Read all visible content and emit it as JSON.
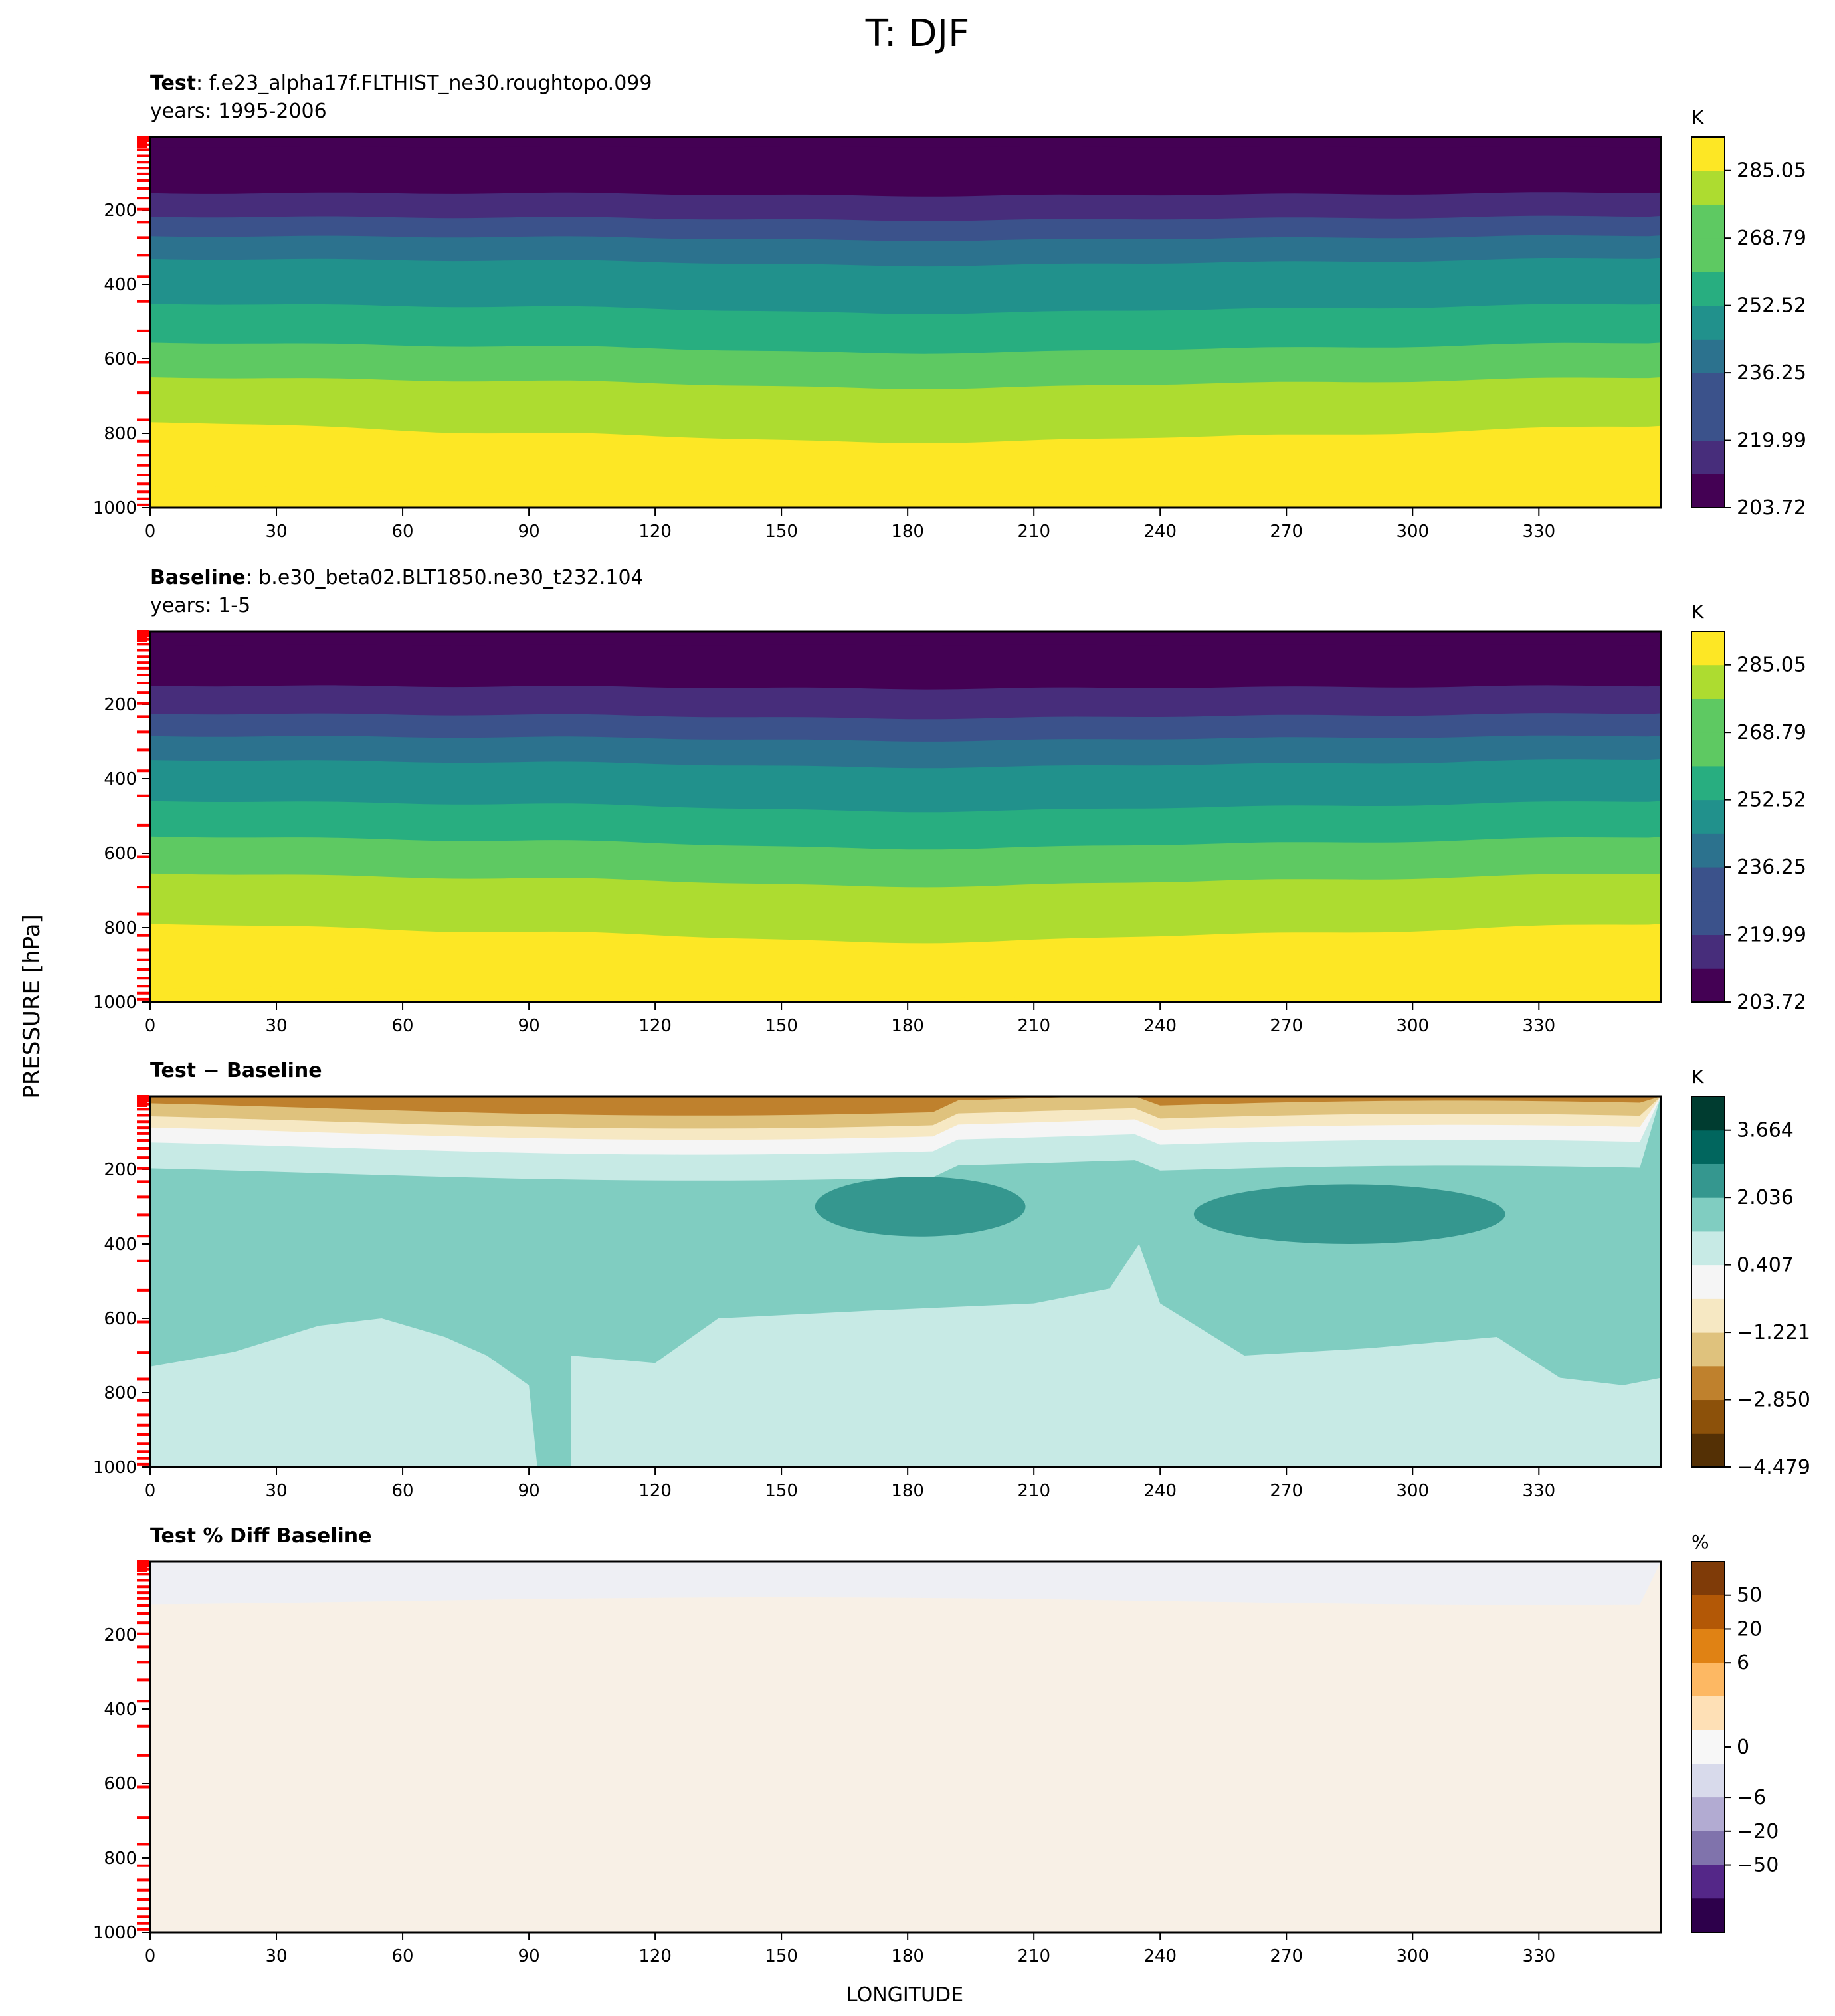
{
  "figure": {
    "title": "T: DJF",
    "ylabel": "PRESSURE [hPa]",
    "xlabel": "LONGITUDE"
  },
  "colors": {
    "viridis": [
      "#440154",
      "#472d7b",
      "#3b528b",
      "#2c728e",
      "#21918c",
      "#28ae80",
      "#5ec962",
      "#addc30",
      "#fde725"
    ],
    "diff": [
      "#543005",
      "#8c510a",
      "#bf812d",
      "#dfc27d",
      "#f6e8c3",
      "#f5f5f5",
      "#c7eae5",
      "#80cdc1",
      "#35978f",
      "#01665e",
      "#003c30"
    ],
    "pct": [
      "#2d004b",
      "#542788",
      "#8073ac",
      "#b2abd2",
      "#d8daeb",
      "#f7f7f7",
      "#fee0b6",
      "#fdb863",
      "#e08214",
      "#b35806",
      "#7f3b08"
    ],
    "tick_mark": "#ff0000"
  },
  "chart_data": [
    {
      "type": "contourf",
      "panel": "test",
      "title_bold": "Test",
      "title_rest": ": f.e23_alpha17f.FLTHIST_ne30.roughtopo.099",
      "subtitle": "years: 1995-2006",
      "x_ticks": [
        0,
        30,
        60,
        90,
        120,
        150,
        180,
        210,
        240,
        270,
        300,
        330
      ],
      "xlim": [
        0,
        359
      ],
      "y_ticks": [
        200,
        400,
        600,
        800,
        1000
      ],
      "ylim": [
        1000,
        3.6
      ],
      "model_levels_hPa": [
        3.6,
        7.6,
        14.4,
        24.6,
        38.3,
        54.6,
        72.0,
        87.8,
        103.3,
        121.5,
        142.9,
        168.2,
        197.9,
        232.8,
        273.9,
        322.2,
        379.1,
        446.0,
        524.7,
        609.8,
        691.4,
        763.4,
        820.9,
        859.5,
        887.0,
        912.6,
        936.2,
        957.5,
        976.3,
        992.6
      ],
      "colorbar": {
        "label": "K",
        "levels": [
          203.72,
          211.85,
          219.99,
          228.12,
          236.25,
          244.38,
          252.52,
          260.66,
          268.79,
          276.92,
          285.05,
          293.19
        ],
        "tick_labels": [
          "203.72",
          "219.99",
          "236.25",
          "252.52",
          "268.79",
          "285.05"
        ]
      },
      "boundaries_hPa": [
        {
          "level": 211.85,
          "p": [
            30,
            30,
            30,
            30,
            30
          ]
        },
        {
          "level": 219.99,
          "p": [
            155,
            155,
            162,
            158,
            153
          ]
        },
        {
          "level": 228.12,
          "p": [
            218,
            220,
            228,
            222,
            216
          ]
        },
        {
          "level": 236.25,
          "p": [
            270,
            272,
            282,
            275,
            268
          ]
        },
        {
          "level": 244.38,
          "p": [
            332,
            336,
            350,
            340,
            330
          ]
        },
        {
          "level": 252.52,
          "p": [
            452,
            460,
            478,
            465,
            452
          ]
        },
        {
          "level": 260.66,
          "p": [
            556,
            566,
            585,
            570,
            556
          ]
        },
        {
          "level": 268.79,
          "p": [
            650,
            660,
            680,
            664,
            650
          ]
        },
        {
          "level": 276.92,
          "p": [
            770,
            800,
            825,
            805,
            780
          ]
        },
        {
          "level": 285.05,
          "p": [
            945,
            955,
            965,
            962,
            950
          ]
        }
      ]
    },
    {
      "type": "contourf",
      "panel": "baseline",
      "title_bold": "Baseline",
      "title_rest": ": b.e30_beta02.BLT1850.ne30_t232.104",
      "subtitle": "years: 1-5",
      "x_ticks": [
        0,
        30,
        60,
        90,
        120,
        150,
        180,
        210,
        240,
        270,
        300,
        330
      ],
      "xlim": [
        0,
        359
      ],
      "y_ticks": [
        200,
        400,
        600,
        800,
        1000
      ],
      "ylim": [
        1000,
        3.6
      ],
      "colorbar": {
        "label": "K",
        "levels": [
          203.72,
          211.85,
          219.99,
          228.12,
          236.25,
          244.38,
          252.52,
          260.66,
          268.79,
          276.92,
          285.05,
          293.19
        ],
        "tick_labels": [
          "203.72",
          "219.99",
          "236.25",
          "252.52",
          "268.79",
          "285.05"
        ]
      },
      "boundaries_hPa": [
        {
          "level": 211.85,
          "p": [
            40,
            40,
            40,
            40,
            40
          ]
        },
        {
          "level": 219.99,
          "p": [
            150,
            152,
            158,
            154,
            150
          ]
        },
        {
          "level": 228.12,
          "p": [
            225,
            228,
            238,
            230,
            224
          ]
        },
        {
          "level": 236.25,
          "p": [
            285,
            288,
            298,
            290,
            284
          ]
        },
        {
          "level": 244.38,
          "p": [
            350,
            356,
            370,
            360,
            348
          ]
        },
        {
          "level": 252.52,
          "p": [
            460,
            468,
            488,
            474,
            460
          ]
        },
        {
          "level": 260.66,
          "p": [
            555,
            566,
            588,
            572,
            556
          ]
        },
        {
          "level": 268.79,
          "p": [
            655,
            668,
            690,
            672,
            655
          ]
        },
        {
          "level": 276.92,
          "p": [
            790,
            812,
            840,
            815,
            790
          ]
        },
        {
          "level": 285.05,
          "p": [
            960,
            975,
            985,
            985,
            965
          ]
        }
      ]
    },
    {
      "type": "contourf",
      "panel": "difference",
      "title_bold": "Test − Baseline",
      "title_rest": "",
      "subtitle": "",
      "x_ticks": [
        0,
        30,
        60,
        90,
        120,
        150,
        180,
        210,
        240,
        270,
        300,
        330
      ],
      "xlim": [
        0,
        359
      ],
      "y_ticks": [
        200,
        400,
        600,
        800,
        1000
      ],
      "ylim": [
        1000,
        3.6
      ],
      "colorbar": {
        "label": "K",
        "levels": [
          -4.479,
          -3.664,
          -2.85,
          -2.036,
          -1.221,
          -0.407,
          0.407,
          1.221,
          2.036,
          2.85,
          3.664,
          4.479
        ],
        "tick_labels": [
          "−4.479",
          "−2.850",
          "−1.221",
          "0.407",
          "2.036",
          "3.664"
        ]
      },
      "regions": [
        {
          "value": -2.5,
          "shape": "top_band",
          "p_bottom": 35
        },
        {
          "value": -1.8,
          "shape": "top_band",
          "p_bottom": 70
        },
        {
          "value": -0.9,
          "shape": "top_band",
          "p_bottom": 100
        },
        {
          "value": 0.0,
          "shape": "top_band",
          "p_bottom": 140
        },
        {
          "value": 0.8,
          "shape": "top_band",
          "p_bottom": 210
        },
        {
          "value": 1.6,
          "shape": "main_field"
        },
        {
          "value": 0.8,
          "shape": "lower_tongue_west"
        },
        {
          "value": 0.8,
          "shape": "lower_tongue_center"
        },
        {
          "value": 2.4,
          "shape": "blob",
          "lon": [
            158,
            208
          ],
          "p": [
            220,
            380
          ]
        },
        {
          "value": 2.4,
          "shape": "blob",
          "lon": [
            248,
            322
          ],
          "p": [
            240,
            400
          ]
        }
      ]
    },
    {
      "type": "contourf",
      "panel": "percent",
      "title_bold": "Test % Diff Baseline",
      "title_rest": "",
      "subtitle": "",
      "x_ticks": [
        0,
        30,
        60,
        90,
        120,
        150,
        180,
        210,
        240,
        270,
        300,
        330
      ],
      "xlim": [
        0,
        359
      ],
      "y_ticks": [
        200,
        400,
        600,
        800,
        1000
      ],
      "ylim": [
        1000,
        3.6
      ],
      "colorbar": {
        "label": "%",
        "levels": [
          -100,
          -50,
          -20,
          -6,
          -2,
          -0.5,
          0.5,
          2,
          6,
          20,
          50,
          100
        ],
        "tick_labels": [
          "50",
          "20",
          "6",
          "0",
          "−6",
          "−20",
          "−50"
        ],
        "tick_values": [
          50,
          20,
          6,
          0,
          -6,
          -20,
          -50
        ]
      },
      "regions": [
        {
          "value": -0.3,
          "shape": "top_band",
          "p_bottom": 110
        },
        {
          "value": 0.3,
          "shape": "main_field"
        }
      ]
    }
  ]
}
